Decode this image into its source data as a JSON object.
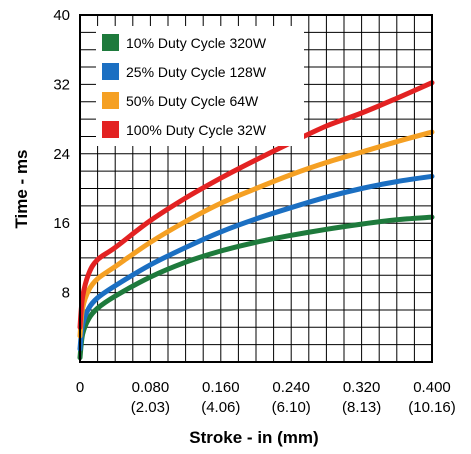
{
  "chart_data": {
    "type": "line",
    "title": "",
    "xlabel": "Stroke - in (mm)",
    "ylabel": "Time - ms",
    "xlim": [
      0,
      0.4
    ],
    "ylim": [
      0,
      40
    ],
    "grid": true,
    "legend_position": "top-left",
    "x_ticks": [
      {
        "value": 0,
        "label": "0",
        "sub": ""
      },
      {
        "value": 0.08,
        "label": "0.080",
        "sub": "(2.03)"
      },
      {
        "value": 0.16,
        "label": "0.160",
        "sub": "(4.06)"
      },
      {
        "value": 0.24,
        "label": "0.240",
        "sub": "(6.10)"
      },
      {
        "value": 0.32,
        "label": "0.320",
        "sub": "(8.13)"
      },
      {
        "value": 0.4,
        "label": "0.400",
        "sub": "(10.16)"
      }
    ],
    "y_ticks": [
      {
        "value": 8,
        "label": "8"
      },
      {
        "value": 16,
        "label": "16"
      },
      {
        "value": 24,
        "label": "24"
      },
      {
        "value": 32,
        "label": "32"
      },
      {
        "value": 40,
        "label": "40"
      }
    ],
    "series": [
      {
        "name": "10% Duty Cycle 320W",
        "color": "#1e7a3c",
        "x": [
          0,
          0.003,
          0.01,
          0.02,
          0.04,
          0.08,
          0.12,
          0.16,
          0.2,
          0.24,
          0.28,
          0.32,
          0.36,
          0.4
        ],
        "y": [
          0.5,
          3.2,
          5.0,
          6.2,
          7.6,
          9.8,
          11.5,
          12.8,
          13.8,
          14.6,
          15.3,
          15.9,
          16.4,
          16.7
        ]
      },
      {
        "name": "25% Duty Cycle 128W",
        "color": "#1b6fc2",
        "x": [
          0,
          0.003,
          0.01,
          0.02,
          0.04,
          0.08,
          0.12,
          0.16,
          0.2,
          0.24,
          0.28,
          0.32,
          0.36,
          0.4
        ],
        "y": [
          1.5,
          4.3,
          6.2,
          7.4,
          8.8,
          11.2,
          13.2,
          15.0,
          16.5,
          17.8,
          19.0,
          20.0,
          20.8,
          21.4
        ]
      },
      {
        "name": "50% Duty Cycle 64W",
        "color": "#f5a023",
        "x": [
          0,
          0.003,
          0.01,
          0.02,
          0.04,
          0.08,
          0.12,
          0.16,
          0.2,
          0.24,
          0.28,
          0.32,
          0.36,
          0.4
        ],
        "y": [
          3.0,
          6.2,
          8.3,
          9.6,
          11.0,
          13.8,
          16.2,
          18.3,
          20.0,
          21.6,
          23.0,
          24.2,
          25.4,
          26.5
        ]
      },
      {
        "name": "100% Duty Cycle 32W",
        "color": "#e32222",
        "x": [
          0,
          0.003,
          0.01,
          0.02,
          0.04,
          0.08,
          0.12,
          0.16,
          0.2,
          0.24,
          0.28,
          0.32,
          0.36,
          0.4
        ],
        "y": [
          4.0,
          7.5,
          10.2,
          11.8,
          13.2,
          16.3,
          18.9,
          21.2,
          23.3,
          25.3,
          27.2,
          28.7,
          30.4,
          32.2
        ]
      }
    ]
  }
}
